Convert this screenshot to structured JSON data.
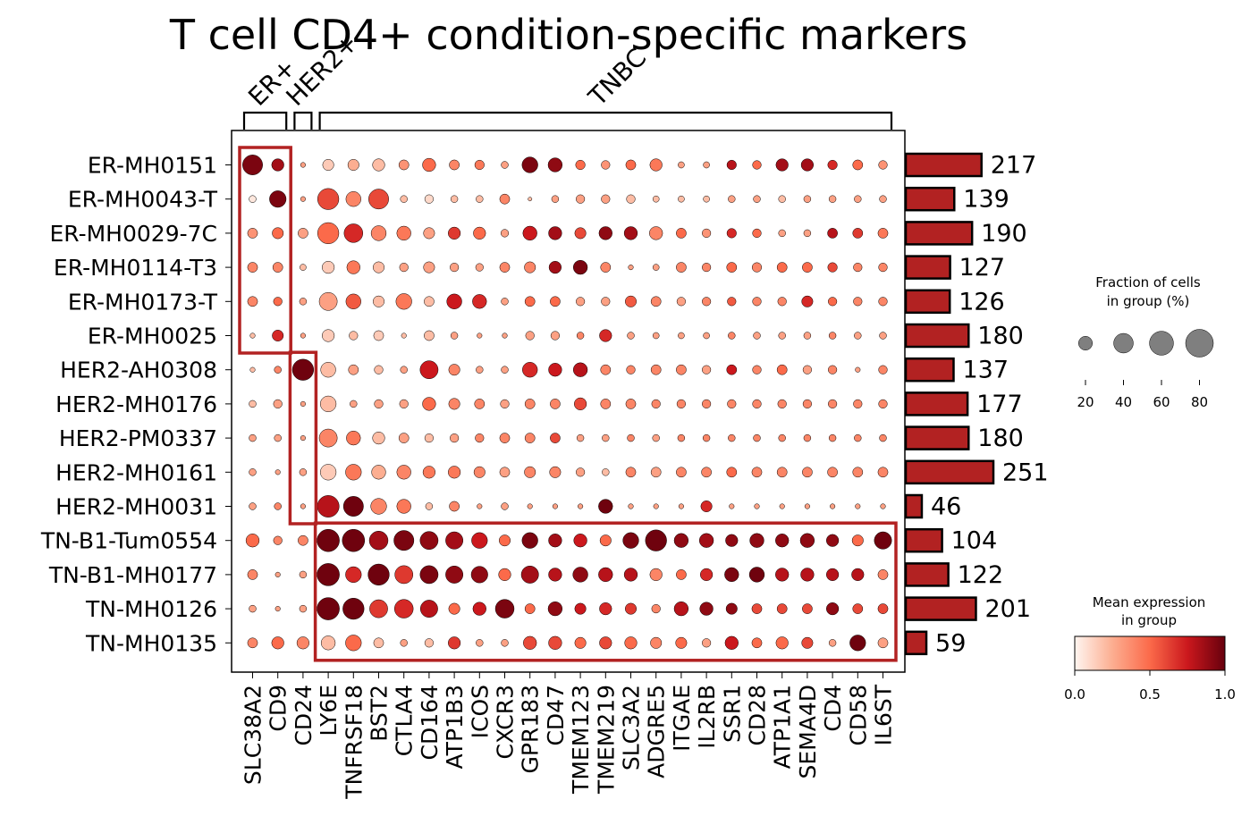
{
  "chart_data": {
    "type": "scatter",
    "subtype": "dotplot",
    "title": "T cell CD4+ condition-specific markers",
    "genes": [
      "SLC38A2",
      "CD9",
      "CD24",
      "LY6E",
      "TNFRSF18",
      "BST2",
      "CTLA4",
      "CD164",
      "ATP1B3",
      "ICOS",
      "CXCR3",
      "GPR183",
      "CD47",
      "TMEM123",
      "TMEM219",
      "SLC3A2",
      "ADGRE5",
      "ITGAE",
      "IL2RB",
      "SSR1",
      "CD28",
      "ATP1A1",
      "SEMA4D",
      "CD4",
      "CD58",
      "IL6ST"
    ],
    "groups": [
      "ER-MH0151",
      "ER-MH0043-T",
      "ER-MH0029-7C",
      "ER-MH0114-T3",
      "ER-MH0173-T",
      "ER-MH0025",
      "HER2-AH0308",
      "HER2-MH0176",
      "HER2-PM0337",
      "HER2-MH0161",
      "HER2-MH0031",
      "TN-B1-Tum0554",
      "TN-B1-MH0177",
      "TN-MH0126",
      "TN-MH0135"
    ],
    "gene_brackets": [
      {
        "label": "ER+",
        "start": 0,
        "end": 1
      },
      {
        "label": "HER2+",
        "start": 2,
        "end": 2
      },
      {
        "label": "TNBC",
        "start": 3,
        "end": 25
      }
    ],
    "highlight_boxes": [
      {
        "group_start": 0,
        "group_end": 5,
        "gene_start": 0,
        "gene_end": 1
      },
      {
        "group_start": 6,
        "group_end": 10,
        "gene_start": 2,
        "gene_end": 2
      },
      {
        "group_start": 11,
        "group_end": 14,
        "gene_start": 3,
        "gene_end": 25
      }
    ],
    "cell_counts": [
      217,
      139,
      190,
      127,
      126,
      180,
      137,
      177,
      180,
      251,
      46,
      104,
      122,
      201,
      59
    ],
    "mean_expression": [
      [
        0.95,
        0.85,
        0.3,
        0.15,
        0.25,
        0.2,
        0.35,
        0.5,
        0.4,
        0.45,
        0.3,
        0.95,
        0.9,
        0.5,
        0.35,
        0.5,
        0.45,
        0.3,
        0.3,
        0.8,
        0.5,
        0.85,
        0.85,
        0.7,
        0.5,
        0.35
      ],
      [
        0.05,
        0.95,
        0.3,
        0.6,
        0.4,
        0.6,
        0.2,
        0.1,
        0.2,
        0.2,
        0.4,
        0.2,
        0.3,
        0.3,
        0.3,
        0.2,
        0.2,
        0.2,
        0.2,
        0.3,
        0.3,
        0.2,
        0.3,
        0.3,
        0.3,
        0.3
      ],
      [
        0.35,
        0.5,
        0.3,
        0.5,
        0.7,
        0.4,
        0.45,
        0.3,
        0.65,
        0.5,
        0.3,
        0.75,
        0.85,
        0.6,
        0.9,
        0.85,
        0.4,
        0.5,
        0.35,
        0.7,
        0.5,
        0.3,
        0.3,
        0.8,
        0.65,
        0.45
      ],
      [
        0.4,
        0.4,
        0.2,
        0.15,
        0.45,
        0.2,
        0.3,
        0.3,
        0.3,
        0.3,
        0.4,
        0.4,
        0.85,
        0.95,
        0.4,
        0.3,
        0.3,
        0.4,
        0.4,
        0.5,
        0.4,
        0.5,
        0.5,
        0.6,
        0.4,
        0.4
      ],
      [
        0.4,
        0.5,
        0.3,
        0.3,
        0.55,
        0.2,
        0.45,
        0.2,
        0.75,
        0.7,
        0.3,
        0.5,
        0.5,
        0.3,
        0.3,
        0.55,
        0.4,
        0.3,
        0.4,
        0.55,
        0.4,
        0.4,
        0.7,
        0.5,
        0.4,
        0.4
      ],
      [
        0.2,
        0.7,
        0.3,
        0.15,
        0.2,
        0.15,
        0.2,
        0.2,
        0.3,
        0.3,
        0.3,
        0.3,
        0.3,
        0.4,
        0.7,
        0.3,
        0.3,
        0.3,
        0.3,
        0.4,
        0.3,
        0.3,
        0.3,
        0.4,
        0.3,
        0.3
      ],
      [
        0.2,
        0.4,
        0.98,
        0.2,
        0.3,
        0.2,
        0.3,
        0.75,
        0.4,
        0.3,
        0.3,
        0.7,
        0.75,
        0.8,
        0.4,
        0.4,
        0.4,
        0.4,
        0.3,
        0.75,
        0.4,
        0.5,
        0.3,
        0.4,
        0.3,
        0.4
      ],
      [
        0.2,
        0.3,
        0.3,
        0.2,
        0.3,
        0.3,
        0.3,
        0.5,
        0.4,
        0.4,
        0.3,
        0.4,
        0.4,
        0.6,
        0.4,
        0.4,
        0.4,
        0.4,
        0.4,
        0.4,
        0.4,
        0.4,
        0.4,
        0.4,
        0.4,
        0.4
      ],
      [
        0.3,
        0.3,
        0.3,
        0.4,
        0.45,
        0.2,
        0.3,
        0.2,
        0.3,
        0.4,
        0.4,
        0.4,
        0.6,
        0.3,
        0.3,
        0.4,
        0.3,
        0.4,
        0.4,
        0.4,
        0.4,
        0.4,
        0.4,
        0.4,
        0.4,
        0.4
      ],
      [
        0.3,
        0.3,
        0.3,
        0.15,
        0.45,
        0.25,
        0.4,
        0.45,
        0.45,
        0.4,
        0.3,
        0.4,
        0.4,
        0.3,
        0.2,
        0.4,
        0.3,
        0.4,
        0.4,
        0.5,
        0.4,
        0.4,
        0.4,
        0.4,
        0.4,
        0.4
      ],
      [
        0.3,
        0.4,
        0.3,
        0.8,
        0.98,
        0.4,
        0.45,
        0.2,
        0.4,
        0.3,
        0.3,
        0.3,
        0.3,
        0.3,
        0.98,
        0.3,
        0.3,
        0.3,
        0.7,
        0.3,
        0.3,
        0.3,
        0.3,
        0.3,
        0.3,
        0.3
      ],
      [
        0.5,
        0.4,
        0.4,
        0.98,
        0.98,
        0.85,
        0.95,
        0.9,
        0.85,
        0.75,
        0.5,
        0.95,
        0.85,
        0.75,
        0.5,
        0.95,
        0.98,
        0.9,
        0.85,
        0.9,
        0.9,
        0.9,
        0.9,
        0.9,
        0.5,
        0.98
      ],
      [
        0.4,
        0.3,
        0.3,
        0.98,
        0.7,
        0.98,
        0.65,
        0.95,
        0.9,
        0.9,
        0.5,
        0.85,
        0.8,
        0.9,
        0.8,
        0.8,
        0.4,
        0.5,
        0.7,
        0.95,
        0.98,
        0.8,
        0.8,
        0.8,
        0.8,
        0.4
      ],
      [
        0.3,
        0.3,
        0.3,
        0.98,
        0.98,
        0.65,
        0.7,
        0.8,
        0.5,
        0.75,
        0.95,
        0.5,
        0.9,
        0.75,
        0.7,
        0.65,
        0.4,
        0.8,
        0.9,
        0.9,
        0.6,
        0.6,
        0.6,
        0.9,
        0.6,
        0.6
      ],
      [
        0.4,
        0.5,
        0.4,
        0.2,
        0.5,
        0.2,
        0.3,
        0.2,
        0.65,
        0.3,
        0.3,
        0.6,
        0.6,
        0.5,
        0.6,
        0.5,
        0.4,
        0.5,
        0.3,
        0.75,
        0.5,
        0.5,
        0.6,
        0.3,
        0.98,
        0.3
      ]
    ],
    "fraction_pct": [
      [
        80,
        30,
        5,
        25,
        25,
        30,
        20,
        35,
        20,
        18,
        10,
        50,
        40,
        18,
        15,
        20,
        30,
        8,
        8,
        18,
        15,
        30,
        30,
        18,
        20,
        15
      ],
      [
        10,
        55,
        5,
        90,
        45,
        80,
        10,
        15,
        10,
        10,
        20,
        3,
        10,
        15,
        15,
        15,
        8,
        8,
        8,
        10,
        10,
        10,
        10,
        10,
        10,
        10
      ],
      [
        20,
        25,
        20,
        90,
        70,
        45,
        40,
        25,
        30,
        30,
        12,
        40,
        35,
        25,
        35,
        35,
        35,
        20,
        15,
        18,
        15,
        10,
        10,
        20,
        20,
        20
      ],
      [
        20,
        20,
        8,
        30,
        35,
        25,
        15,
        25,
        15,
        12,
        20,
        25,
        30,
        40,
        20,
        5,
        8,
        20,
        15,
        20,
        18,
        20,
        20,
        18,
        15,
        15
      ],
      [
        20,
        15,
        10,
        65,
        45,
        25,
        50,
        20,
        45,
        40,
        10,
        20,
        20,
        15,
        15,
        25,
        20,
        15,
        15,
        15,
        15,
        15,
        25,
        15,
        15,
        15
      ],
      [
        5,
        25,
        5,
        30,
        15,
        20,
        5,
        20,
        10,
        5,
        5,
        15,
        15,
        10,
        30,
        10,
        8,
        8,
        8,
        10,
        10,
        10,
        10,
        10,
        10,
        10
      ],
      [
        5,
        10,
        90,
        45,
        20,
        15,
        10,
        65,
        25,
        10,
        10,
        45,
        35,
        40,
        20,
        15,
        20,
        20,
        15,
        20,
        15,
        20,
        15,
        15,
        5,
        15
      ],
      [
        10,
        15,
        5,
        50,
        10,
        15,
        15,
        35,
        25,
        20,
        15,
        20,
        20,
        30,
        20,
        20,
        15,
        15,
        15,
        15,
        15,
        15,
        15,
        15,
        15,
        15
      ],
      [
        10,
        10,
        5,
        65,
        40,
        30,
        20,
        15,
        15,
        15,
        20,
        20,
        20,
        10,
        10,
        10,
        10,
        10,
        10,
        10,
        10,
        10,
        10,
        10,
        10,
        10
      ],
      [
        10,
        5,
        10,
        50,
        50,
        40,
        40,
        30,
        30,
        25,
        20,
        25,
        25,
        15,
        10,
        20,
        20,
        20,
        20,
        20,
        20,
        20,
        20,
        20,
        20,
        20
      ],
      [
        10,
        10,
        5,
        95,
        80,
        50,
        40,
        10,
        20,
        5,
        10,
        5,
        5,
        5,
        40,
        5,
        5,
        5,
        25,
        5,
        5,
        5,
        5,
        5,
        5,
        5
      ],
      [
        35,
        15,
        20,
        100,
        100,
        70,
        80,
        65,
        60,
        50,
        25,
        50,
        35,
        35,
        25,
        50,
        90,
        40,
        40,
        30,
        40,
        35,
        40,
        30,
        25,
        60
      ],
      [
        20,
        5,
        10,
        100,
        50,
        90,
        65,
        65,
        60,
        55,
        30,
        60,
        35,
        45,
        40,
        35,
        30,
        20,
        30,
        40,
        45,
        35,
        35,
        30,
        30,
        20
      ],
      [
        10,
        5,
        10,
        100,
        90,
        65,
        70,
        60,
        25,
        35,
        70,
        20,
        40,
        25,
        30,
        25,
        15,
        40,
        35,
        25,
        20,
        20,
        20,
        30,
        20,
        20
      ],
      [
        20,
        30,
        30,
        40,
        50,
        20,
        10,
        15,
        30,
        10,
        10,
        35,
        35,
        25,
        30,
        30,
        25,
        25,
        15,
        35,
        20,
        30,
        25,
        10,
        50,
        20
      ]
    ],
    "size_legend": {
      "title": "Fraction of cells\nin group (%)",
      "values": [
        20,
        40,
        60,
        80
      ],
      "labels": [
        "20",
        "40",
        "60",
        "80"
      ]
    },
    "color_legend": {
      "title": "Mean expression\nin group",
      "ticks": [
        "0.0",
        "0.5",
        "1.0"
      ],
      "min": 0,
      "max": 1,
      "colormap": "Reds"
    },
    "colors": {
      "bar_fill": "#b22222",
      "box_outline": "#b22222",
      "dot_edge": "#000000"
    }
  }
}
